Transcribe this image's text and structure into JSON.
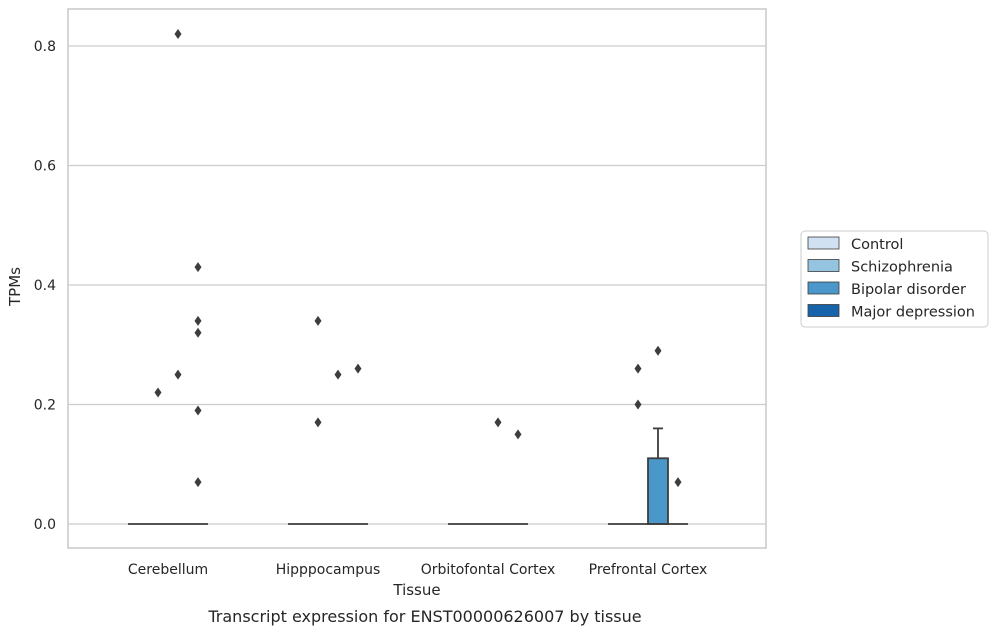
{
  "caption": "Transcript expression for ENST00000626007 by tissue",
  "chart_data": {
    "type": "boxplot",
    "xlabel": "Tissue",
    "ylabel": "TPMs",
    "ylim": [
      -0.04,
      0.86
    ],
    "yticks": [
      0.0,
      0.2,
      0.4,
      0.6,
      0.8
    ],
    "ytick_labels": [
      "0.0",
      "0.2",
      "0.4",
      "0.6",
      "0.8"
    ],
    "grid": "horizontal",
    "legend_position": "right",
    "categories": [
      "Cerebellum",
      "Hipppocampus",
      "Orbitofontal Cortex",
      "Prefrontal Cortex"
    ],
    "series": [
      {
        "name": "Control",
        "color": "#d0e1f2",
        "boxes": [
          {
            "q1": 0,
            "median": 0,
            "q3": 0,
            "whisker_high": 0,
            "outliers": []
          },
          {
            "q1": 0,
            "median": 0,
            "q3": 0,
            "whisker_high": 0,
            "outliers": []
          },
          {
            "q1": 0,
            "median": 0,
            "q3": 0,
            "whisker_high": 0,
            "outliers": []
          },
          {
            "q1": 0,
            "median": 0,
            "q3": 0,
            "whisker_high": 0,
            "outliers": []
          }
        ]
      },
      {
        "name": "Schizophrenia",
        "color": "#94c4df",
        "boxes": [
          {
            "q1": 0,
            "median": 0,
            "q3": 0,
            "whisker_high": 0,
            "outliers": [
              0.22
            ]
          },
          {
            "q1": 0,
            "median": 0,
            "q3": 0,
            "whisker_high": 0,
            "outliers": [
              0.34,
              0.17
            ]
          },
          {
            "q1": 0,
            "median": 0,
            "q3": 0,
            "whisker_high": 0,
            "outliers": []
          },
          {
            "q1": 0,
            "median": 0,
            "q3": 0,
            "whisker_high": 0,
            "outliers": [
              0.26,
              0.2
            ]
          }
        ]
      },
      {
        "name": "Bipolar disorder",
        "color": "#4a98c9",
        "boxes": [
          {
            "q1": 0,
            "median": 0,
            "q3": 0,
            "whisker_high": 0,
            "outliers": [
              0.82,
              0.25
            ]
          },
          {
            "q1": 0,
            "median": 0,
            "q3": 0,
            "whisker_high": 0,
            "outliers": [
              0.25
            ]
          },
          {
            "q1": 0,
            "median": 0,
            "q3": 0,
            "whisker_high": 0,
            "outliers": [
              0.17
            ]
          },
          {
            "q1": 0,
            "median": 0,
            "q3": 0.11,
            "whisker_high": 0.16,
            "outliers": [
              0.29
            ]
          }
        ]
      },
      {
        "name": "Major depression",
        "color": "#1764ab",
        "boxes": [
          {
            "q1": 0,
            "median": 0,
            "q3": 0,
            "whisker_high": 0,
            "outliers": [
              0.32,
              0.19,
              0.07,
              0.43,
              0.34
            ]
          },
          {
            "q1": 0,
            "median": 0,
            "q3": 0,
            "whisker_high": 0,
            "outliers": [
              0.26
            ]
          },
          {
            "q1": 0,
            "median": 0,
            "q3": 0,
            "whisker_high": 0,
            "outliers": [
              0.15
            ]
          },
          {
            "q1": 0,
            "median": 0,
            "q3": 0,
            "whisker_high": 0,
            "outliers": [
              0.07
            ]
          }
        ]
      }
    ]
  }
}
